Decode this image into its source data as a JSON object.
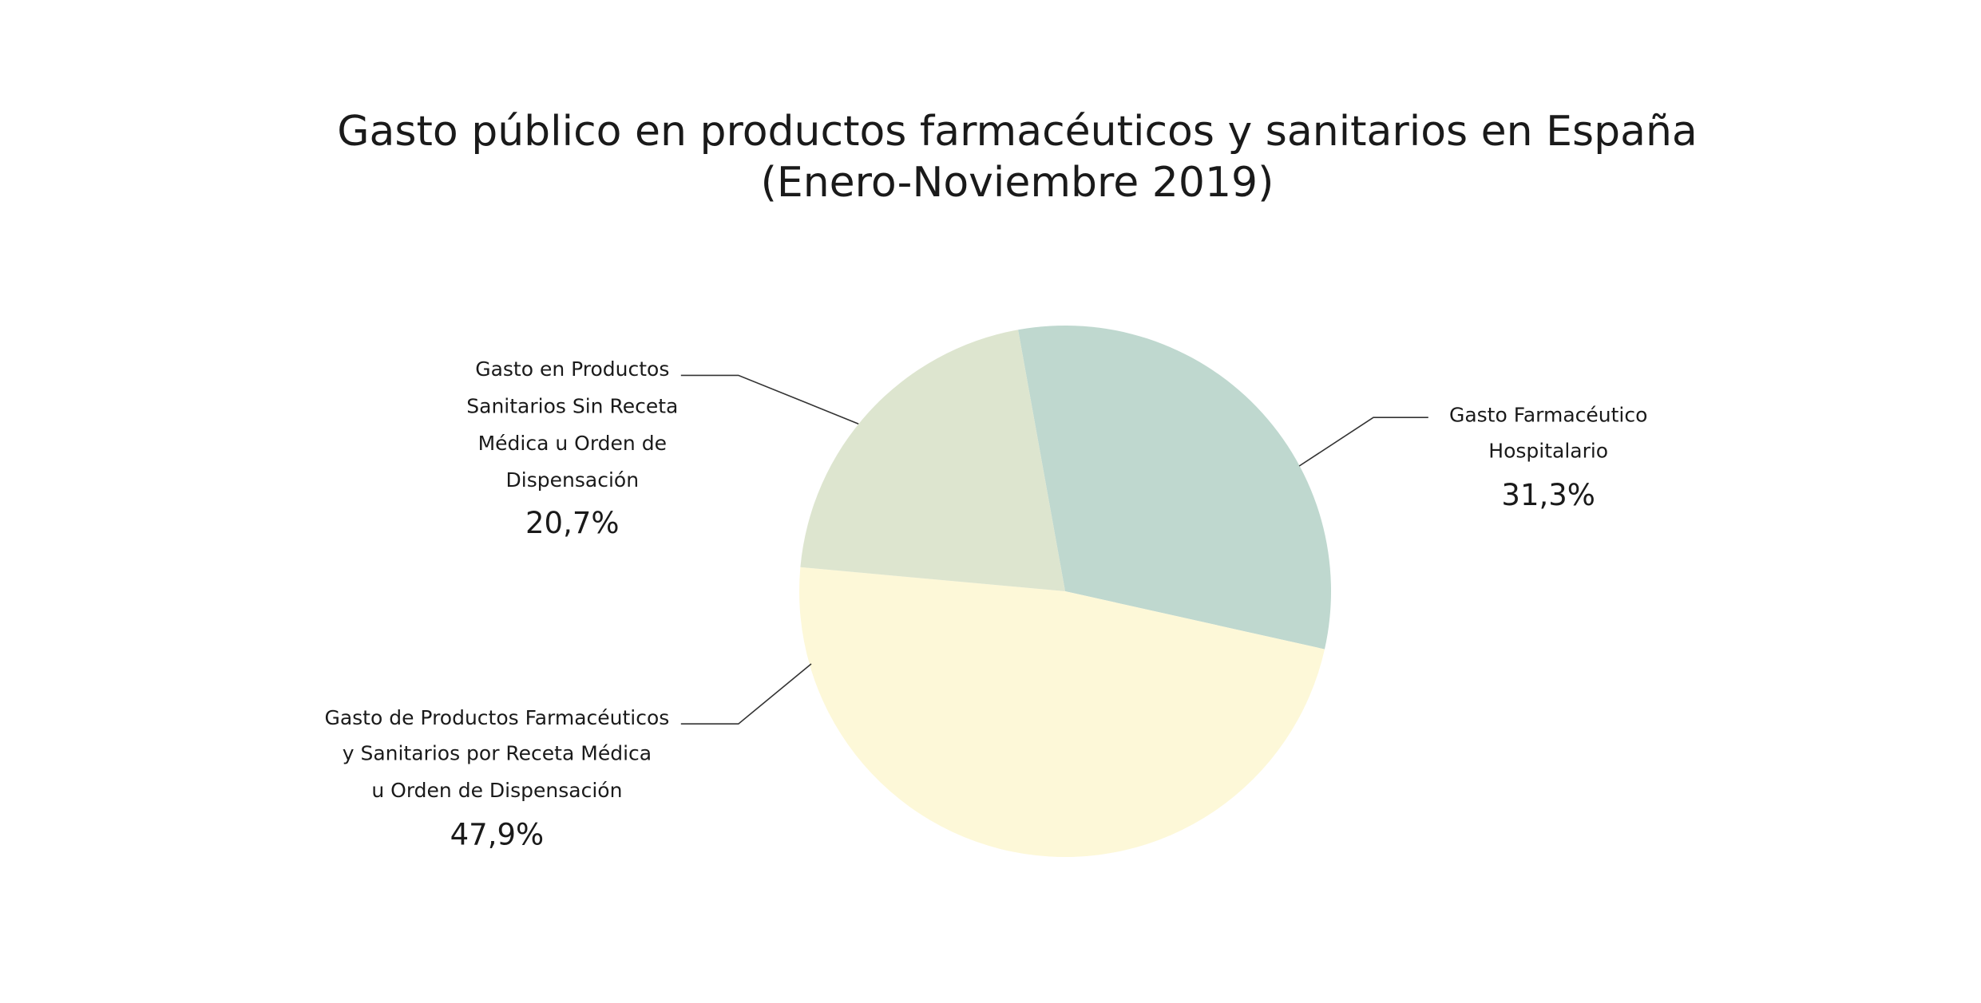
{
  "chart_data": {
    "type": "pie",
    "title": [
      "Gasto público en productos farmacéuticos y sanitarios en España",
      "(Enero-Noviembre 2019)"
    ],
    "categories": [
      [
        "Gasto Farmacéutico",
        "Hospitalario"
      ],
      [
        "Gasto de Productos Farmacéuticos",
        "y Sanitarios por Receta Médica",
        "u Orden de Dispensación"
      ],
      [
        "Gasto en Productos",
        "Sanitarios Sin Receta",
        "Médica u Orden de",
        "Dispensación"
      ]
    ],
    "values": [
      31.3,
      47.9,
      20.7
    ],
    "value_labels": [
      "31,3%",
      "47,9%",
      "20,7%"
    ],
    "colors": [
      "#bfd8cf",
      "#fdf8d8",
      "#dde5cf"
    ]
  }
}
